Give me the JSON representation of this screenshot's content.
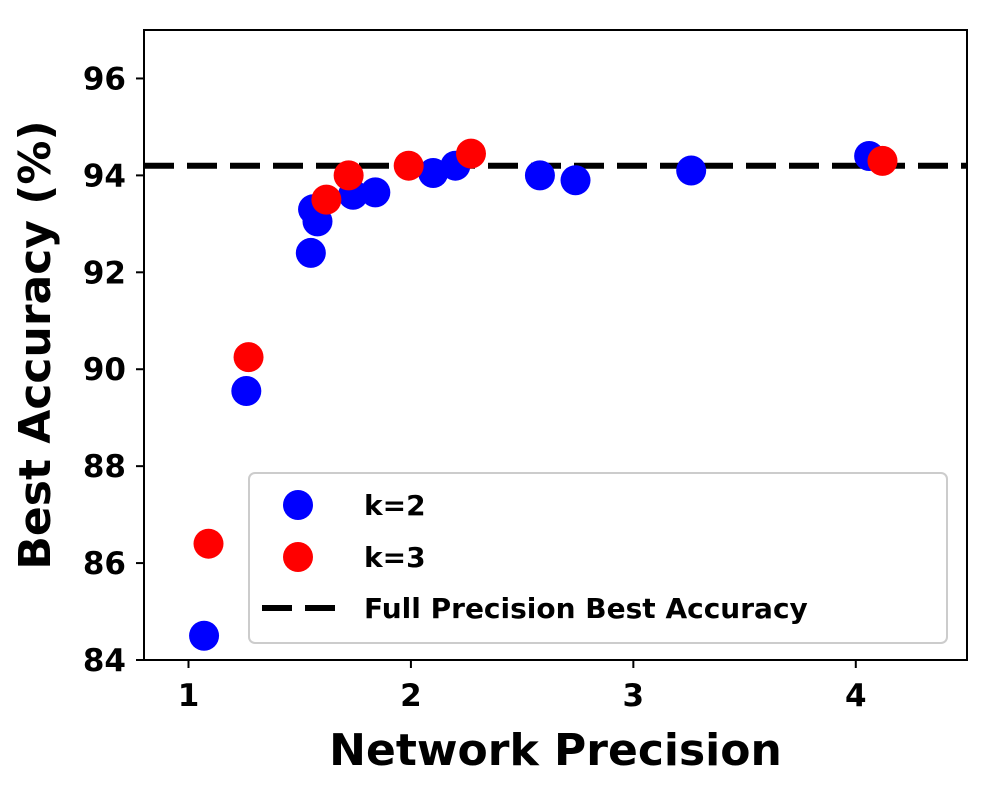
{
  "chart_data": {
    "type": "scatter",
    "title": "",
    "xlabel": "Network Precision",
    "ylabel": "Best Accuracy (%)",
    "xlim": [
      0.8,
      4.5
    ],
    "ylim": [
      84,
      97
    ],
    "x_ticks": [
      1,
      2,
      3,
      4
    ],
    "y_ticks": [
      84,
      86,
      88,
      90,
      92,
      94,
      96
    ],
    "x_tick_labels": [
      "1",
      "2",
      "3",
      "4"
    ],
    "y_tick_labels": [
      "84",
      "86",
      "88",
      "90",
      "92",
      "94",
      "96"
    ],
    "grid": false,
    "legend_position": "lower-right",
    "series": [
      {
        "name": "k=2",
        "color": "#0000ff",
        "points": [
          {
            "x": 1.07,
            "y": 84.5
          },
          {
            "x": 1.26,
            "y": 89.55
          },
          {
            "x": 1.55,
            "y": 92.4
          },
          {
            "x": 1.56,
            "y": 93.3
          },
          {
            "x": 1.58,
            "y": 93.05
          },
          {
            "x": 1.74,
            "y": 93.6
          },
          {
            "x": 1.84,
            "y": 93.65
          },
          {
            "x": 2.1,
            "y": 94.05
          },
          {
            "x": 2.2,
            "y": 94.2
          },
          {
            "x": 2.58,
            "y": 94.0
          },
          {
            "x": 2.74,
            "y": 93.9
          },
          {
            "x": 3.26,
            "y": 94.1
          },
          {
            "x": 4.06,
            "y": 94.4
          }
        ]
      },
      {
        "name": "k=3",
        "color": "#ff0000",
        "points": [
          {
            "x": 1.09,
            "y": 86.4
          },
          {
            "x": 1.27,
            "y": 90.25
          },
          {
            "x": 1.62,
            "y": 93.5
          },
          {
            "x": 1.72,
            "y": 94.0
          },
          {
            "x": 1.99,
            "y": 94.2
          },
          {
            "x": 2.27,
            "y": 94.45
          },
          {
            "x": 4.12,
            "y": 94.3
          }
        ]
      }
    ],
    "reference_line": {
      "name": "Full Precision Best Accuracy",
      "y": 94.2,
      "color": "#000000",
      "style": "dashed"
    }
  }
}
